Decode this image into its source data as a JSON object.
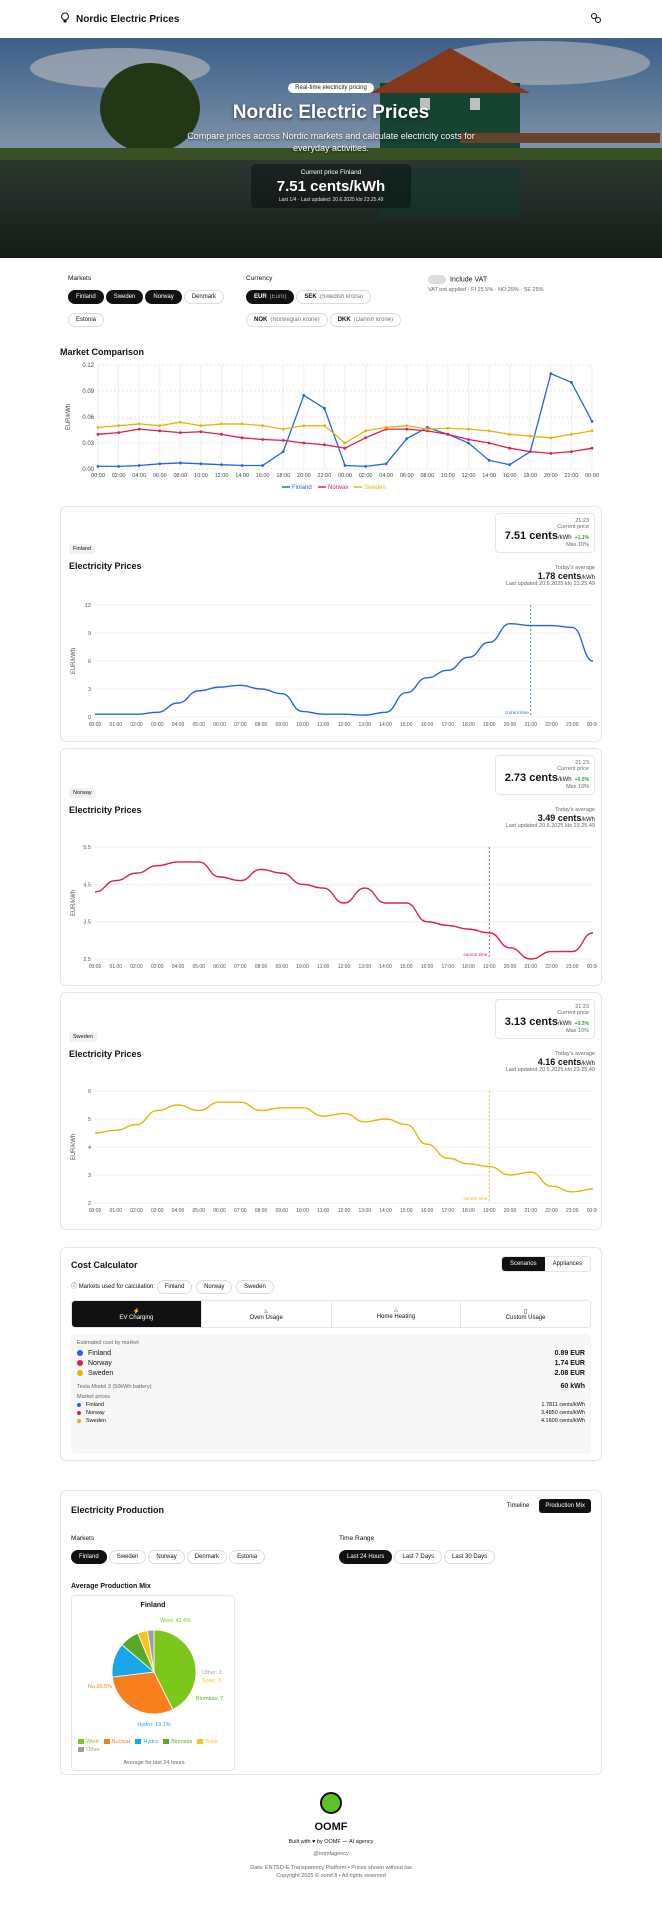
{
  "header": {
    "app_title": "Nordic Electric Prices",
    "logo_icon": "lightbulb-icon",
    "settings_icon": "settings-icon"
  },
  "hero": {
    "badge": "Real-time electricity pricing",
    "title": "Nordic Electric Prices",
    "subtitle": "Compare prices across Nordic markets and calculate electricity costs for everyday activities.",
    "current_label": "Current price Finland",
    "current_value": "7.51 cents/kWh",
    "updated": "Last 1/4 · Last updated: 20.6.2025 klo 23.25.49"
  },
  "filters": {
    "markets_label": "Markets",
    "markets": [
      {
        "label": "Finland",
        "selected": true
      },
      {
        "label": "Sweden",
        "selected": true
      },
      {
        "label": "Norway",
        "selected": true
      },
      {
        "label": "Denmark",
        "selected": false
      },
      {
        "label": "Estonia",
        "selected": false
      }
    ],
    "currency_label": "Currency",
    "currencies": [
      {
        "code": "EUR",
        "name": "(Euro)",
        "selected": true
      },
      {
        "code": "SEK",
        "name": "(Swedish krona)",
        "selected": false
      },
      {
        "code": "NOK",
        "name": "(Norwegian krone)",
        "selected": false
      },
      {
        "code": "DKK",
        "name": "(Danish krone)",
        "selected": false
      }
    ],
    "vat_label": "Include VAT",
    "vat_note": "VAT not applied · FI 25.5% · NO 25% · SE 25%"
  },
  "comparison": {
    "title": "Market Comparison",
    "ylabel": "EUR/kWh",
    "legend": [
      "Finland",
      "Norway",
      "Sweden"
    ]
  },
  "fi_card": {
    "tag": "Finland",
    "title": "Electricity Prices",
    "time": "21:23",
    "current_label": "Current price",
    "current_value": "7.51 cents",
    "unit": "/kWh",
    "change": "+1.1%",
    "range": "Max 10%",
    "avg_label": "Today's average",
    "avg_value": "1.78 cents",
    "avg_note": "Last updated 20.6.2025 klo 23.25.49",
    "ylabel": "EUR/kWh",
    "now_label": "current time"
  },
  "no_card": {
    "tag": "Norway",
    "title": "Electricity Prices",
    "time": "21:23",
    "current_label": "Current price",
    "current_value": "2.73 cents",
    "unit": "/kWh",
    "change": "+0.5%",
    "range": "Max 10%",
    "avg_label": "Today's average",
    "avg_value": "3.49 cents",
    "avg_note": "Last updated 20.6.2025 klo 23.25.49",
    "ylabel": "EUR/kWh",
    "now_label": "current time"
  },
  "se_card": {
    "tag": "Sweden",
    "title": "Electricity Prices",
    "time": "21:23",
    "current_label": "Current price",
    "current_value": "3.13 cents",
    "unit": "/kWh",
    "change": "+0.3%",
    "range": "Max 10%",
    "avg_label": "Today's average",
    "avg_value": "4.16 cents",
    "avg_note": "Last updated 20.6.2025 klo 23.25.49",
    "ylabel": "EUR/kWh",
    "now_label": "current time"
  },
  "calculator": {
    "title": "Cost Calculator",
    "tabs": [
      "Scenarios",
      "Appliances"
    ],
    "markets_note": "Markets used for calculation:",
    "market_chips": [
      "Finland",
      "Norway",
      "Sweden"
    ],
    "scenarios": [
      {
        "label": "EV Charging",
        "icon": "ev-charging-icon"
      },
      {
        "label": "Oven Usage",
        "icon": "oven-icon"
      },
      {
        "label": "Home Heating",
        "icon": "home-heating-icon"
      },
      {
        "label": "Custom Usage",
        "icon": "custom-usage-icon"
      }
    ],
    "estimated_label": "Estimated cost by market",
    "costs": [
      {
        "market": "Finland",
        "value": "0.89 EUR",
        "color": "#2563eb"
      },
      {
        "market": "Norway",
        "value": "1.74 EUR",
        "color": "#e11d48"
      },
      {
        "market": "Sweden",
        "value": "2.08 EUR",
        "color": "#eab308"
      }
    ],
    "usage_label": "Tesla Model 3 (50kWh battery)",
    "usage_value": "60 kWh",
    "market_prices_label": "Market prices",
    "market_prices": [
      {
        "market": "Finland",
        "value": "1.7811 cents/kWh"
      },
      {
        "market": "Norway",
        "value": "3.4850 cents/kWh"
      },
      {
        "market": "Sweden",
        "value": "4.1600 cents/kWh"
      }
    ]
  },
  "production": {
    "title": "Electricity Production",
    "view_tabs": [
      "Timeline",
      "Production Mix"
    ],
    "markets_label": "Markets",
    "markets": [
      "Finland",
      "Sweden",
      "Norway",
      "Denmark",
      "Estonia"
    ],
    "range_label": "Time Range",
    "ranges": [
      "Last 24 Hours",
      "Last 7 Days",
      "Last 30 Days"
    ],
    "mix_title": "Average Production Mix",
    "pie_title": "Finland",
    "pie_labels": {
      "wind": "Wind: 42.6%",
      "nuclear": "Nu 30.5%",
      "hydro": "Hydro: 13.1%",
      "biomass": "Biomass: 7.",
      "solar": "Solar: 3.",
      "other": "Other: 2."
    },
    "legend": [
      "Wind",
      "Nuclear",
      "Hydro",
      "Biomass",
      "Solar",
      "Other"
    ],
    "footnote": "Average for last 24 hours",
    "mix": [
      {
        "name": "Wind",
        "value": 42.6,
        "color": "#7cc71b"
      },
      {
        "name": "Nuclear",
        "value": 30.5,
        "color": "#f97f1e"
      },
      {
        "name": "Hydro",
        "value": 13.1,
        "color": "#17a7e8"
      },
      {
        "name": "Biomass",
        "value": 7.5,
        "color": "#5aa82b"
      },
      {
        "name": "Solar",
        "value": 3.8,
        "color": "#f5c61e"
      },
      {
        "name": "Other",
        "value": 2.5,
        "color": "#9aa0a6"
      }
    ]
  },
  "footer": {
    "brand": "OOMF",
    "made_by": "Built with ♥ by OOMF — AI agency",
    "handle": "@oomfagency",
    "note1": "Data: ENTSO-E Transparency Platform • Prices shown without tax",
    "note2": "Copyright 2025 © oomf.fi • All rights reserved"
  },
  "chart_data": [
    {
      "type": "line",
      "title": "Market Comparison",
      "ylabel": "EUR/kWh",
      "x": [
        "00:00",
        "02:00",
        "04:00",
        "06:00",
        "08:00",
        "10:00",
        "12:00",
        "14:00",
        "16:00",
        "18:00",
        "20:00",
        "22:00",
        "00:00",
        "02:00",
        "04:00",
        "06:00",
        "08:00",
        "10:00",
        "12:00",
        "14:00",
        "16:00",
        "18:00",
        "20:00",
        "22:00",
        "00:00"
      ],
      "ylim": [
        0,
        0.12
      ],
      "yticks": [
        0,
        0.03,
        0.06,
        0.09,
        0.12
      ],
      "series": [
        {
          "name": "Finland",
          "color": "#2563eb",
          "values": [
            0.003,
            0.003,
            0.004,
            0.006,
            0.007,
            0.006,
            0.005,
            0.004,
            0.004,
            0.02,
            0.085,
            0.07,
            0.004,
            0.003,
            0.006,
            0.035,
            0.048,
            0.04,
            0.03,
            0.01,
            0.005,
            0.02,
            0.11,
            0.1,
            0.055
          ]
        },
        {
          "name": "Norway",
          "color": "#e11d48",
          "values": [
            0.04,
            0.042,
            0.046,
            0.044,
            0.042,
            0.043,
            0.04,
            0.036,
            0.034,
            0.033,
            0.03,
            0.028,
            0.024,
            0.036,
            0.046,
            0.046,
            0.044,
            0.04,
            0.034,
            0.03,
            0.024,
            0.02,
            0.018,
            0.02,
            0.024
          ]
        },
        {
          "name": "Sweden",
          "color": "#eab308",
          "values": [
            0.048,
            0.05,
            0.052,
            0.05,
            0.054,
            0.05,
            0.052,
            0.052,
            0.05,
            0.046,
            0.05,
            0.05,
            0.03,
            0.044,
            0.048,
            0.05,
            0.046,
            0.047,
            0.046,
            0.044,
            0.04,
            0.038,
            0.036,
            0.04,
            0.044
          ]
        }
      ]
    },
    {
      "type": "area",
      "title": "Electricity Prices",
      "series": [
        {
          "name": "Finland",
          "color": "#2563eb",
          "values": [
            0.3,
            0.3,
            0.3,
            0.5,
            1.5,
            2.8,
            3.2,
            3.4,
            3.0,
            2.5,
            0.6,
            0.3,
            0.3,
            0.2,
            0.5,
            2.6,
            4.2,
            5.0,
            6.4,
            8.0,
            10.0,
            9.8,
            9.8,
            9.6,
            6.0
          ]
        }
      ],
      "x": [
        "00:00",
        "01:00",
        "02:00",
        "03:00",
        "04:00",
        "05:00",
        "06:00",
        "07:00",
        "08:00",
        "09:00",
        "10:00",
        "11:00",
        "12:00",
        "13:00",
        "14:00",
        "15:00",
        "16:00",
        "17:00",
        "18:00",
        "19:00",
        "20:00",
        "21:00",
        "22:00",
        "23:00",
        "00:00"
      ],
      "ylabel": "EUR/kWh",
      "ylim": [
        0,
        12
      ],
      "yticks": [
        0,
        3,
        6,
        9,
        12
      ]
    },
    {
      "type": "area",
      "title": "Electricity Prices",
      "series": [
        {
          "name": "Norway",
          "color": "#e11d48",
          "values": [
            4.3,
            4.6,
            4.8,
            5.0,
            5.1,
            5.1,
            4.7,
            4.6,
            4.9,
            4.8,
            4.5,
            4.4,
            4.0,
            4.4,
            4.0,
            4.0,
            3.5,
            3.4,
            3.3,
            3.2,
            2.8,
            2.5,
            2.7,
            2.7,
            3.2
          ]
        }
      ],
      "x": [
        "00:00",
        "01:00",
        "02:00",
        "03:00",
        "04:00",
        "05:00",
        "06:00",
        "07:00",
        "08:00",
        "09:00",
        "10:00",
        "11:00",
        "12:00",
        "13:00",
        "14:00",
        "15:00",
        "16:00",
        "17:00",
        "18:00",
        "19:00",
        "20:00",
        "21:00",
        "22:00",
        "23:00",
        "00:00"
      ],
      "ylabel": "EUR/kWh",
      "ylim": [
        2.5,
        5.5
      ],
      "yticks": [
        2.5,
        3.5,
        4.5,
        5.5
      ]
    },
    {
      "type": "area",
      "title": "Electricity Prices",
      "series": [
        {
          "name": "Sweden",
          "color": "#eab308",
          "values": [
            4.5,
            4.6,
            4.8,
            5.3,
            5.5,
            5.3,
            5.6,
            5.6,
            5.3,
            5.4,
            5.4,
            5.1,
            5.2,
            4.9,
            5.0,
            4.8,
            4.1,
            3.6,
            3.4,
            3.3,
            3.0,
            3.1,
            2.6,
            2.4,
            2.5
          ]
        }
      ],
      "x": [
        "00:00",
        "01:00",
        "02:00",
        "03:00",
        "04:00",
        "05:00",
        "06:00",
        "07:00",
        "08:00",
        "09:00",
        "10:00",
        "11:00",
        "12:00",
        "13:00",
        "14:00",
        "15:00",
        "16:00",
        "17:00",
        "18:00",
        "19:00",
        "20:00",
        "21:00",
        "22:00",
        "23:00",
        "00:00"
      ],
      "ylabel": "EUR/kWh",
      "ylim": [
        2.0,
        6.0
      ],
      "yticks": [
        2,
        3,
        4,
        5,
        6
      ]
    },
    {
      "type": "pie",
      "title": "Finland",
      "categories": [
        "Wind",
        "Nuclear",
        "Hydro",
        "Biomass",
        "Solar",
        "Other"
      ],
      "values": [
        42.6,
        30.5,
        13.1,
        7.5,
        3.8,
        2.5
      ]
    }
  ]
}
